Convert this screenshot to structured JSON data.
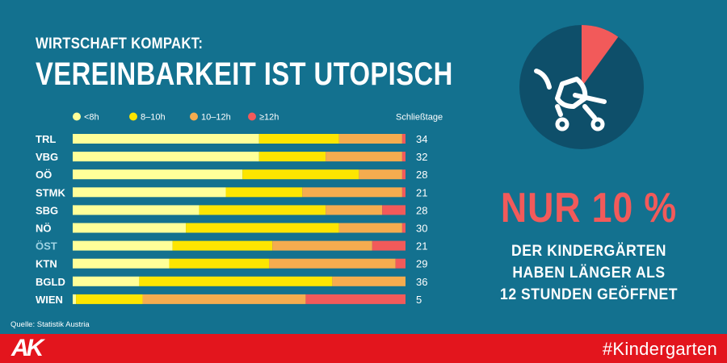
{
  "header": {
    "kicker": "WIRTSCHAFT KOMPAKT:",
    "title": "VEREINBARKEIT IST UTOPISCH"
  },
  "chart_data": {
    "type": "bar",
    "stacked": true,
    "orientation": "horizontal",
    "unit": "percent",
    "legend": [
      {
        "label": "<8h",
        "color": "#ffff99"
      },
      {
        "label": "8–10h",
        "color": "#fde500"
      },
      {
        "label": "10–12h",
        "color": "#f5ac4f"
      },
      {
        "label": "≥12h",
        "color": "#f25a5a"
      }
    ],
    "extra_column_label": "Schließtage",
    "categories": [
      "TRL",
      "VBG",
      "OÖ",
      "STMK",
      "SBG",
      "NÖ",
      "ÖST",
      "KTN",
      "BGLD",
      "WIEN"
    ],
    "highlight_category": "ÖST",
    "series": [
      {
        "name": "<8h",
        "values": [
          56,
          56,
          51,
          46,
          38,
          34,
          30,
          29,
          20,
          1
        ]
      },
      {
        "name": "8–10h",
        "values": [
          24,
          20,
          35,
          23,
          38,
          46,
          30,
          30,
          58,
          20
        ]
      },
      {
        "name": "10–12h",
        "values": [
          19,
          23,
          13,
          30,
          17,
          19,
          30,
          38,
          22,
          49
        ]
      },
      {
        "name": "≥12h",
        "values": [
          1,
          1,
          1,
          1,
          7,
          1,
          10,
          3,
          0,
          30
        ]
      }
    ],
    "closing_days": [
      34,
      32,
      28,
      21,
      28,
      30,
      21,
      29,
      36,
      5
    ]
  },
  "side": {
    "pie_share": 10,
    "pie_color": "#f25a5a",
    "pie_base_color": "#0e4f6a",
    "headline": "NUR 10 %",
    "lines": [
      "DER KINDERGÄRTEN",
      "HABEN LÄNGER ALS",
      "12 STUNDEN GEÖFFNET"
    ]
  },
  "source": "Quelle: Statistik Austria",
  "footer": {
    "logo": "AK",
    "hashtag": "#Kindergarten"
  },
  "colors": {
    "background": "#13718f",
    "highlight_label": "#9fd3e3",
    "footer": "#e3151d"
  }
}
